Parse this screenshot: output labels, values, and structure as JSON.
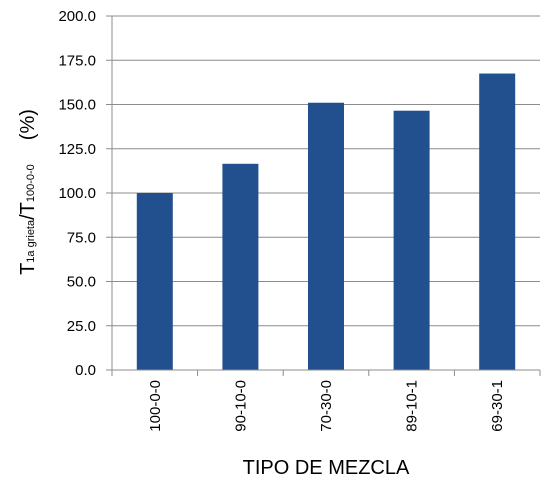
{
  "chart_data": {
    "type": "bar",
    "categories": [
      "100-0-0",
      "90-10-0",
      "70-30-0",
      "89-10-1",
      "69-30-1"
    ],
    "values": [
      100,
      116.5,
      151,
      146.5,
      167.5
    ],
    "color": "#22508e",
    "xlabel": "TIPO DE MEZCLA",
    "ylabel_parts": [
      "T",
      "1a grieta",
      "/T",
      "100-0-0",
      "(%)"
    ],
    "ylim": [
      0,
      200
    ],
    "yticks": [
      {
        "value": 0,
        "label": "0.0"
      },
      {
        "value": 25,
        "label": "25.0"
      },
      {
        "value": 50,
        "label": "50.0"
      },
      {
        "value": 75,
        "label": "75.0"
      },
      {
        "value": 100,
        "label": "100.0"
      },
      {
        "value": 125,
        "label": "125.0"
      },
      {
        "value": 150,
        "label": "150.0"
      },
      {
        "value": 175,
        "label": "175.0"
      },
      {
        "value": 200,
        "label": "200.0"
      }
    ],
    "grid": true
  }
}
